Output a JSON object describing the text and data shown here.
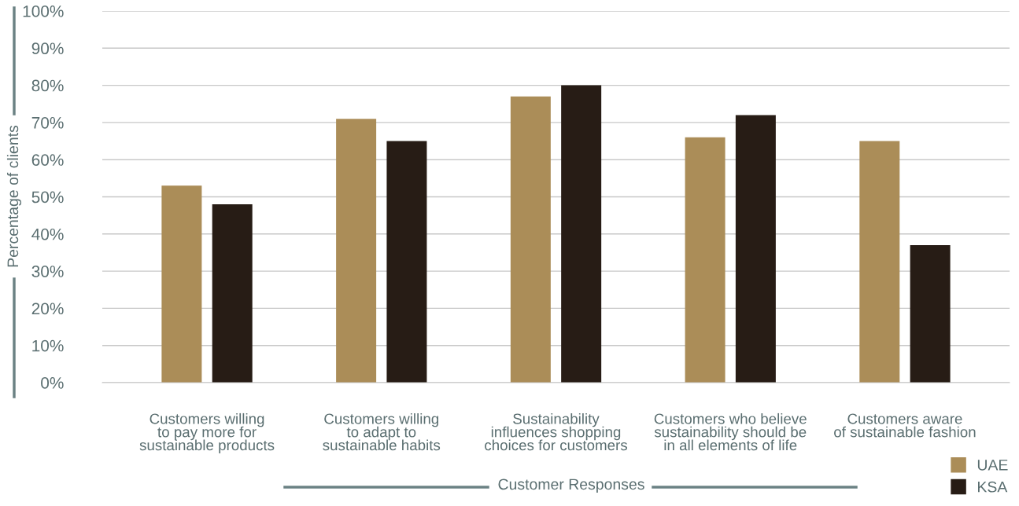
{
  "chart_data": {
    "type": "bar",
    "ylabel": "Percentage of clients",
    "xlabel": "Customer Responses",
    "categories": [
      "Customers willing\nto pay more for\nsustainable products",
      "Customers willing\nto adapt to\nsustainable habits",
      "Sustainability\ninfluences shopping\nchoices for customers",
      "Customers who believe\nsustainability should be\nin all elements of life",
      "Customers aware\nof sustainable fashion"
    ],
    "series": [
      {
        "name": "UAE",
        "color": "#ab8d58",
        "values": [
          53,
          71,
          77,
          66,
          65
        ]
      },
      {
        "name": "KSA",
        "color": "#271c15",
        "values": [
          48,
          65,
          80,
          72,
          37
        ]
      }
    ],
    "ylim": [
      0,
      100
    ],
    "yticks": [
      {
        "value": 0,
        "label": "0%"
      },
      {
        "value": 10,
        "label": "10%"
      },
      {
        "value": 20,
        "label": "20%"
      },
      {
        "value": 30,
        "label": "30%"
      },
      {
        "value": 40,
        "label": "40%"
      },
      {
        "value": 50,
        "label": "50%"
      },
      {
        "value": 60,
        "label": "60%"
      },
      {
        "value": 70,
        "label": "70%"
      },
      {
        "value": 80,
        "label": "80%"
      },
      {
        "value": 90,
        "label": "90%"
      },
      {
        "value": 100,
        "label": "100%"
      }
    ],
    "grid": "y",
    "legend": "bottom right"
  }
}
